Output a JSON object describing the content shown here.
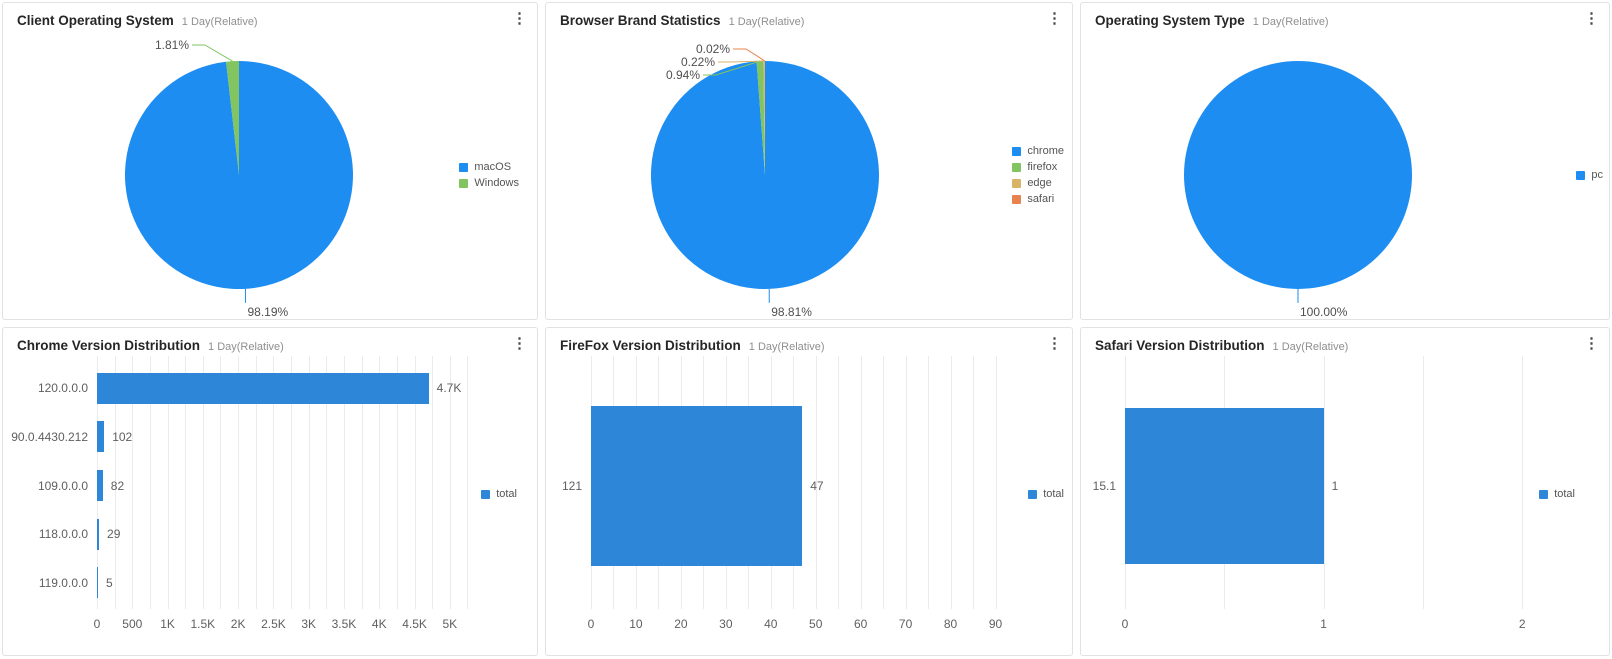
{
  "icons": {
    "kebab": "⋮"
  },
  "colors": {
    "blue_pie": "#1d8df2",
    "blue_bar": "#2e86d9",
    "green": "#82c45f",
    "tan": "#d9b366",
    "orange": "#e8834e",
    "grid": "#ebebee",
    "text": "#5f5f5f"
  },
  "panels": [
    {
      "title": "Client Operating System",
      "subtitle": "1 Day(Relative)"
    },
    {
      "title": "Browser Brand Statistics",
      "subtitle": "1 Day(Relative)"
    },
    {
      "title": "Operating System Type",
      "subtitle": "1 Day(Relative)"
    },
    {
      "title": "Chrome Version Distribution",
      "subtitle": "1 Day(Relative)"
    },
    {
      "title": "FireFox Version Distribution",
      "subtitle": "1 Day(Relative)"
    },
    {
      "title": "Safari Version Distribution",
      "subtitle": "1 Day(Relative)"
    }
  ],
  "chart_data": [
    {
      "type": "pie",
      "title": "Client Operating System",
      "slices": [
        {
          "name": "macOS",
          "value": 98.19,
          "label": "98.19%",
          "color": "#1d8df2"
        },
        {
          "name": "Windows",
          "value": 1.81,
          "label": "1.81%",
          "color": "#82c45f"
        }
      ],
      "legend": [
        "macOS",
        "Windows"
      ],
      "legend_position": "right"
    },
    {
      "type": "pie",
      "title": "Browser Brand Statistics",
      "slices": [
        {
          "name": "chrome",
          "value": 98.81,
          "label": "98.81%",
          "color": "#1d8df2"
        },
        {
          "name": "firefox",
          "value": 0.94,
          "label": "0.94%",
          "color": "#82c45f"
        },
        {
          "name": "edge",
          "value": 0.22,
          "label": "0.22%",
          "color": "#d9b366"
        },
        {
          "name": "safari",
          "value": 0.02,
          "label": "0.02%",
          "color": "#e8834e"
        }
      ],
      "legend": [
        "chrome",
        "firefox",
        "edge",
        "safari"
      ],
      "legend_position": "right"
    },
    {
      "type": "pie",
      "title": "Operating System Type",
      "slices": [
        {
          "name": "pc",
          "value": 100,
          "label": "100.00%",
          "color": "#1d8df2"
        }
      ],
      "legend": [
        "pc"
      ],
      "legend_position": "right"
    },
    {
      "type": "bar",
      "title": "Chrome Version Distribution",
      "orientation": "horizontal",
      "categories": [
        "120.0.0.0",
        "90.0.4430.212",
        "109.0.0.0",
        "118.0.0.0",
        "119.0.0.0"
      ],
      "values": [
        4700,
        102,
        82,
        29,
        5
      ],
      "value_labels": [
        "4.7K",
        "102",
        "82",
        "29",
        "5"
      ],
      "series_name": "total",
      "axis": {
        "max": 5470,
        "grid_step": 250,
        "grid_end": 5250,
        "ticks": [
          [
            0,
            "0"
          ],
          [
            500,
            "500"
          ],
          [
            1000,
            "1K"
          ],
          [
            1500,
            "1.5K"
          ],
          [
            2000,
            "2K"
          ],
          [
            2500,
            "2.5K"
          ],
          [
            3000,
            "3K"
          ],
          [
            3500,
            "3.5K"
          ],
          [
            4000,
            "4K"
          ],
          [
            4500,
            "4.5K"
          ],
          [
            5000,
            "5K"
          ]
        ]
      },
      "legend": [
        "total"
      ],
      "legend_position": "right"
    },
    {
      "type": "bar",
      "title": "FireFox Version Distribution",
      "orientation": "horizontal",
      "categories": [
        "121"
      ],
      "values": [
        47
      ],
      "value_labels": [
        "47"
      ],
      "series_name": "total",
      "axis": {
        "max": 93,
        "grid_step": 5,
        "grid_end": 90,
        "ticks": [
          [
            0,
            "0"
          ],
          [
            10,
            "10"
          ],
          [
            20,
            "20"
          ],
          [
            30,
            "30"
          ],
          [
            40,
            "40"
          ],
          [
            50,
            "50"
          ],
          [
            60,
            "60"
          ],
          [
            70,
            "70"
          ],
          [
            80,
            "80"
          ],
          [
            90,
            "90"
          ]
        ]
      },
      "legend": [
        "total"
      ],
      "legend_position": "right"
    },
    {
      "type": "bar",
      "title": "Safari Version Distribution",
      "orientation": "horizontal",
      "categories": [
        "15.1"
      ],
      "values": [
        1
      ],
      "value_labels": [
        "1"
      ],
      "series_name": "total",
      "axis": {
        "max": 2.19,
        "grid_step": 0.5,
        "grid_end": 2,
        "ticks": [
          [
            0,
            "0"
          ],
          [
            1,
            "1"
          ],
          [
            2,
            "2"
          ]
        ]
      },
      "legend": [
        "total"
      ],
      "legend_position": "right"
    }
  ]
}
